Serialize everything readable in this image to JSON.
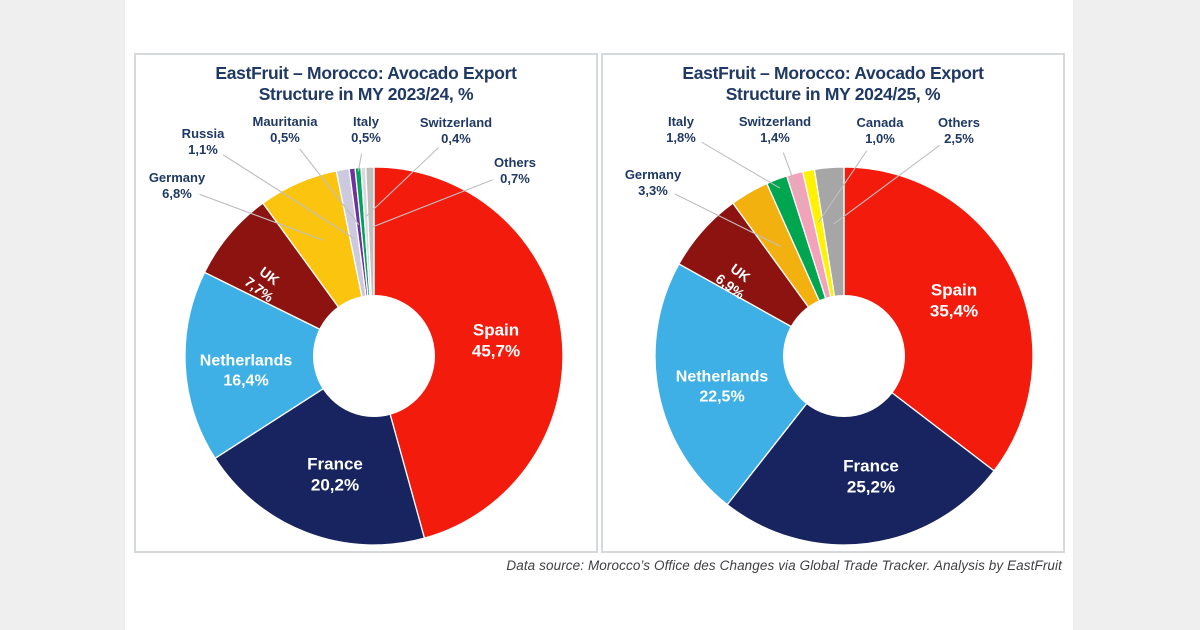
{
  "page": {
    "outer_background": "#efefef",
    "canvas_background": "#ffffff",
    "panel_border_color": "#d6d9dc",
    "title_color": "#1f3864",
    "leader_line_color": "#bfbfbf"
  },
  "footer": {
    "text": "Data source: Morocco’s Office des Changes via Global Trade Tracker. Analysis by EastFruit"
  },
  "chart_data": [
    {
      "type": "pie",
      "subtype": "donut",
      "title_line1": "EastFruit – Morocco: Avocado Export",
      "title_line2": "Structure in MY 2023/24, %",
      "unit": "%",
      "legend_position": "none",
      "slices": [
        {
          "label": "Spain",
          "value": 45.7,
          "display": "45,7%",
          "color": "#f31b0c",
          "label_placement": "inside"
        },
        {
          "label": "France",
          "value": 20.2,
          "display": "20,2%",
          "color": "#17245f",
          "label_placement": "inside"
        },
        {
          "label": "Netherlands",
          "value": 16.4,
          "display": "16,4%",
          "color": "#3fb0e5",
          "label_placement": "inside"
        },
        {
          "label": "UK",
          "value": 7.7,
          "display": "7,7%",
          "color": "#8c1310",
          "label_placement": "inside-rotated"
        },
        {
          "label": "Germany",
          "value": 6.8,
          "display": "6,8%",
          "color": "#fbc40f",
          "label_placement": "outside"
        },
        {
          "label": "Russia",
          "value": 1.1,
          "display": "1,1%",
          "color": "#cccadf",
          "label_placement": "outside"
        },
        {
          "label": "Mauritania",
          "value": 0.5,
          "display": "0,5%",
          "color": "#7030a0",
          "label_placement": "outside"
        },
        {
          "label": "Italy",
          "value": 0.5,
          "display": "0,5%",
          "color": "#00a35b",
          "label_placement": "outside"
        },
        {
          "label": "Switzerland",
          "value": 0.4,
          "display": "0,4%",
          "color": "#d8d8de",
          "label_placement": "outside"
        },
        {
          "label": "Others",
          "value": 0.7,
          "display": "0,7%",
          "color": "#bfbfbf",
          "label_placement": "outside"
        }
      ]
    },
    {
      "type": "pie",
      "subtype": "donut",
      "title_line1": "EastFruit – Morocco: Avocado Export",
      "title_line2": "Structure in MY 2024/25, %",
      "unit": "%",
      "legend_position": "none",
      "slices": [
        {
          "label": "Spain",
          "value": 35.4,
          "display": "35,4%",
          "color": "#f31b0c",
          "label_placement": "inside"
        },
        {
          "label": "France",
          "value": 25.2,
          "display": "25,2%",
          "color": "#17245f",
          "label_placement": "inside"
        },
        {
          "label": "Netherlands",
          "value": 22.5,
          "display": "22,5%",
          "color": "#3fb0e5",
          "label_placement": "inside"
        },
        {
          "label": "UK",
          "value": 6.9,
          "display": "6,9%",
          "color": "#8c1310",
          "label_placement": "inside-rotated"
        },
        {
          "label": "Germany",
          "value": 3.3,
          "display": "3,3%",
          "color": "#f2b10e",
          "label_placement": "outside"
        },
        {
          "label": "Italy",
          "value": 1.8,
          "display": "1,8%",
          "color": "#00a64f",
          "label_placement": "outside"
        },
        {
          "label": "Switzerland",
          "value": 1.4,
          "display": "1,4%",
          "color": "#f2a3b9",
          "label_placement": "outside"
        },
        {
          "label": "Canada",
          "value": 1.0,
          "display": "1,0%",
          "color": "#fef200",
          "label_placement": "outside"
        },
        {
          "label": "Others",
          "value": 2.5,
          "display": "2,5%",
          "color": "#a6a6a6",
          "label_placement": "outside"
        }
      ]
    }
  ]
}
